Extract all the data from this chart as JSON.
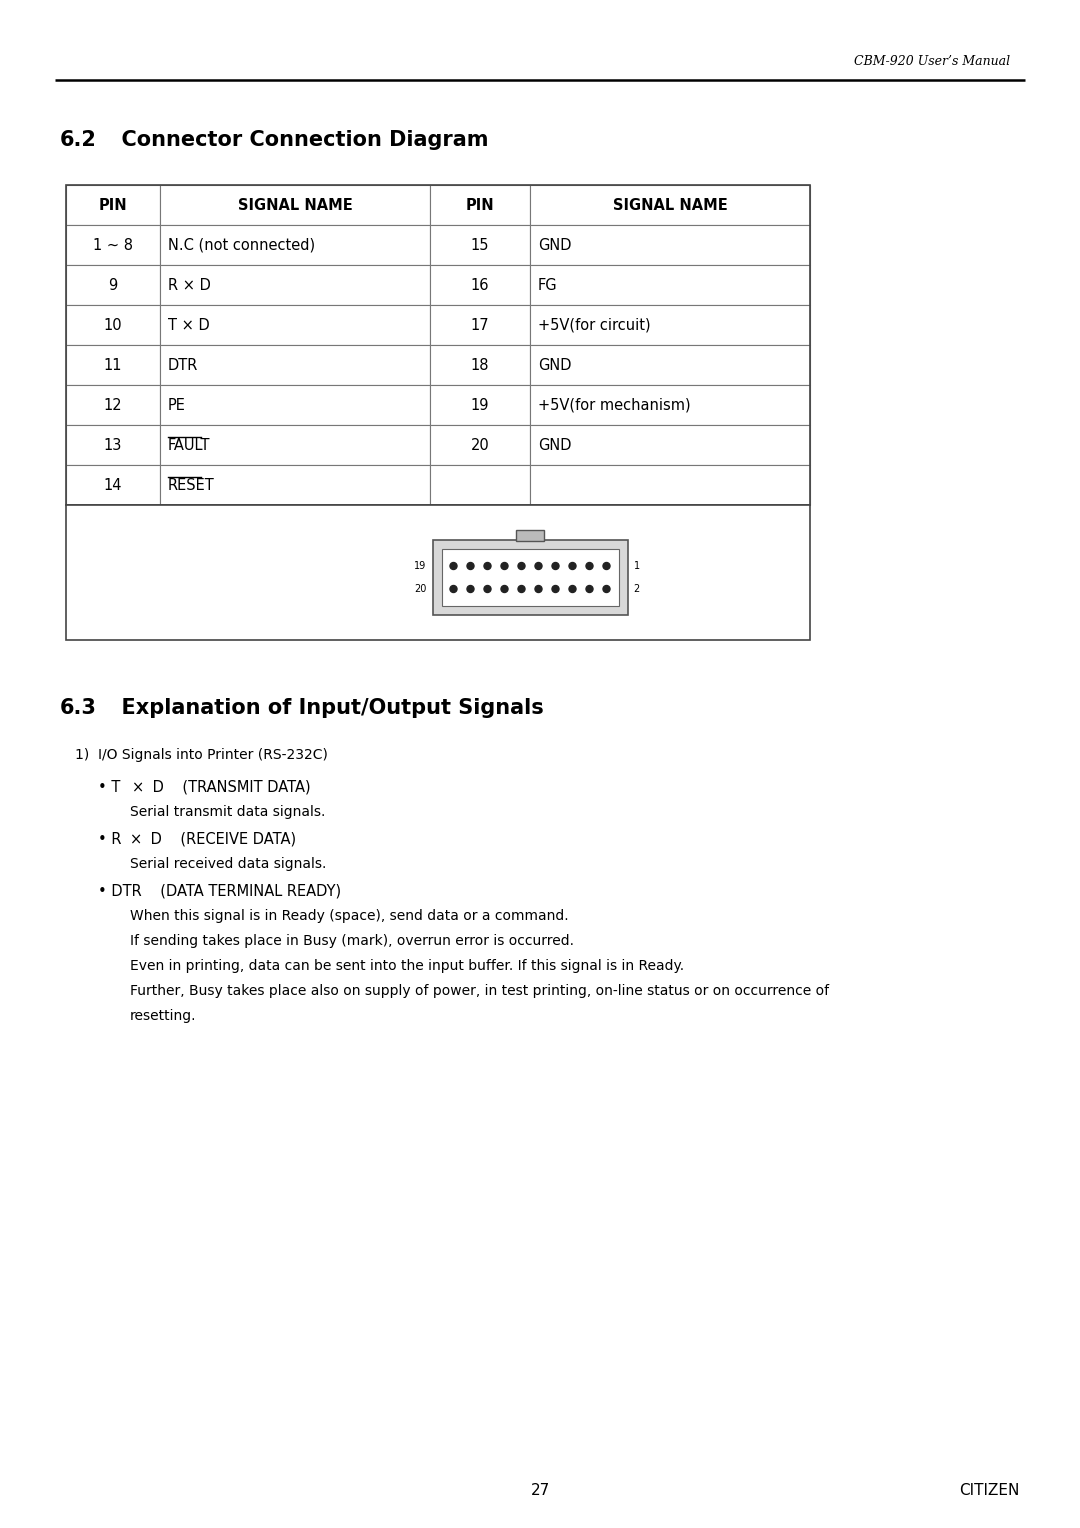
{
  "title_header": "CBM-920 User’s Manual",
  "section_62_title": "6.2",
  "section_62_rest": "  Connector Connection Diagram",
  "section_63_title": "6.3",
  "section_63_rest": "  Explanation of Input/Output Signals",
  "table_headers": [
    "PIN",
    "SIGNAL NAME",
    "PIN",
    "SIGNAL NAME"
  ],
  "table_rows": [
    [
      "1 ~ 8",
      "N.C (not connected)",
      "15",
      "GND"
    ],
    [
      "9",
      "R × D",
      "16",
      "FG"
    ],
    [
      "10",
      "T × D",
      "17",
      "+5V(for circuit)"
    ],
    [
      "11",
      "DTR",
      "18",
      "GND"
    ],
    [
      "12",
      "PE",
      "19",
      "+5V(for mechanism)"
    ],
    [
      "13",
      "FAULT",
      "20",
      "GND"
    ],
    [
      "14",
      "RESET",
      "",
      ""
    ]
  ],
  "overline_signals": [
    "FAULT",
    "RESET"
  ],
  "subsection_title": "1)  I/O Signals into Printer (RS‑232C)",
  "page_number": "27",
  "page_footer": "CITIZEN",
  "bg_color": "#ffffff",
  "text_color": "#000000",
  "table_border_color": "#777777"
}
